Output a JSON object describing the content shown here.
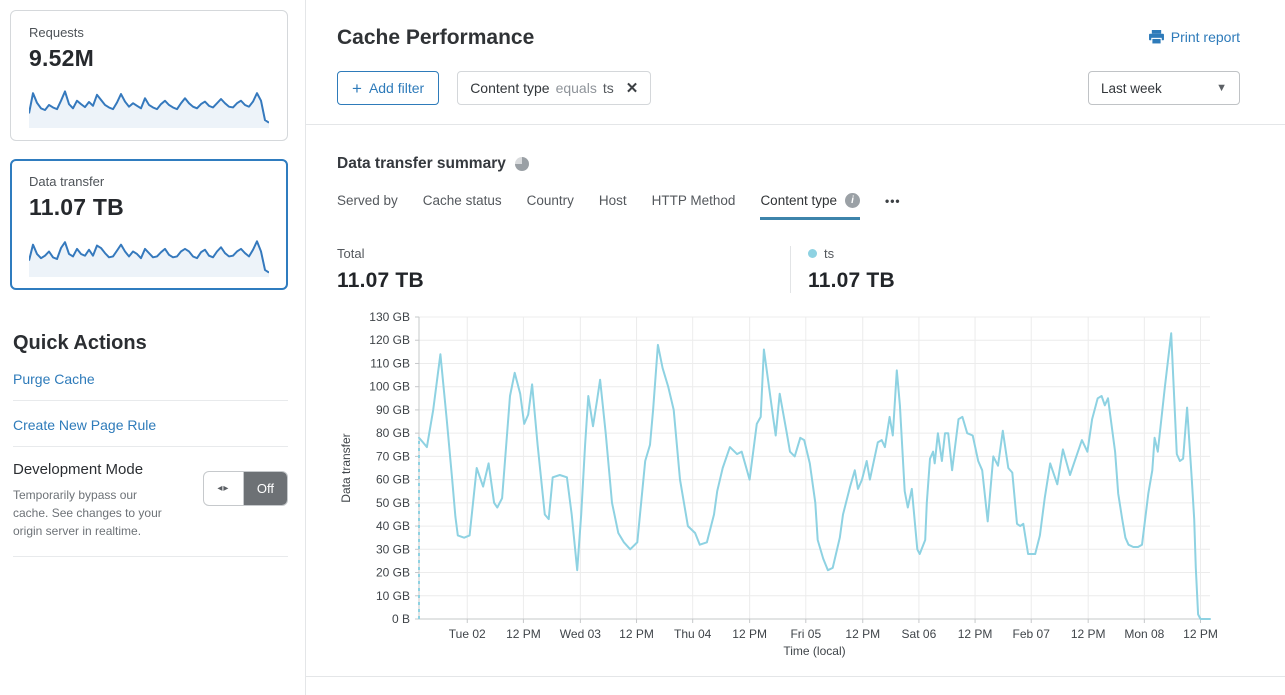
{
  "colors": {
    "accent_blue": "#2e7bba",
    "line_blue": "#8ed2e2",
    "spark_blue": "#3579bd",
    "tab_underline": "#3d84ab"
  },
  "sidebar": {
    "cards": [
      {
        "label": "Requests",
        "value": "9.52M",
        "selected": false,
        "spark": [
          30,
          78,
          55,
          42,
          38,
          50,
          44,
          40,
          60,
          82,
          52,
          42,
          60,
          52,
          45,
          57,
          48,
          74,
          62,
          50,
          44,
          40,
          56,
          76,
          58,
          46,
          54,
          48,
          42,
          66,
          50,
          44,
          40,
          52,
          60,
          50,
          44,
          40,
          54,
          66,
          54,
          46,
          42,
          52,
          58,
          48,
          44,
          54,
          64,
          54,
          46,
          44,
          54,
          60,
          50,
          46,
          58,
          78,
          60,
          14,
          8
        ]
      },
      {
        "label": "Data transfer",
        "value": "11.07 TB",
        "selected": true,
        "spark": [
          34,
          72,
          50,
          40,
          46,
          56,
          42,
          38,
          64,
          78,
          50,
          44,
          62,
          50,
          46,
          60,
          46,
          70,
          64,
          52,
          42,
          44,
          58,
          72,
          56,
          44,
          56,
          50,
          40,
          62,
          52,
          42,
          44,
          54,
          62,
          48,
          42,
          44,
          56,
          62,
          56,
          44,
          40,
          54,
          60,
          46,
          42,
          56,
          66,
          52,
          44,
          46,
          56,
          62,
          52,
          44,
          60,
          80,
          56,
          12,
          6
        ]
      }
    ],
    "quick_actions": {
      "title": "Quick Actions",
      "links": [
        "Purge Cache",
        "Create New Page Rule"
      ]
    },
    "dev_mode": {
      "title": "Development Mode",
      "description": "Temporarily bypass our cache. See changes to your origin server in realtime.",
      "toggle_state": "Off",
      "toggle_arrows": "◂▸"
    }
  },
  "header": {
    "title": "Cache Performance",
    "print_label": "Print report"
  },
  "filters": {
    "add_filter_label": "Add filter",
    "chip": {
      "field": "Content type",
      "operator": "equals",
      "value": "ts",
      "remove": "✕"
    },
    "time_range": "Last week"
  },
  "summary": {
    "title": "Data transfer summary",
    "tabs": [
      "Served by",
      "Cache status",
      "Country",
      "Host",
      "HTTP Method",
      "Content type"
    ],
    "active_tab": "Content type",
    "more_label": "•••",
    "total": {
      "label": "Total",
      "value": "11.07 TB"
    },
    "legend": {
      "label": "ts",
      "value": "11.07 TB",
      "color": "#8ed2e2"
    }
  },
  "chart_data": {
    "type": "line",
    "title": "Data transfer summary",
    "xlabel": "Time (local)",
    "ylabel": "Data transfer",
    "unit": "GB",
    "ylim": [
      0,
      130
    ],
    "ytick_step": 10,
    "ytick_labels": [
      "0 B",
      "10 GB",
      "20 GB",
      "30 GB",
      "40 GB",
      "50 GB",
      "60 GB",
      "70 GB",
      "80 GB",
      "90 GB",
      "100 GB",
      "110 GB",
      "120 GB",
      "130 GB"
    ],
    "grid": true,
    "legend_position": "top-right",
    "start_dashed": true,
    "xticks": [
      {
        "label": "Tue 02",
        "pos": 6.1
      },
      {
        "label": "12 PM",
        "pos": 13.2
      },
      {
        "label": "Wed 03",
        "pos": 20.4
      },
      {
        "label": "12 PM",
        "pos": 27.5
      },
      {
        "label": "Thu 04",
        "pos": 34.6
      },
      {
        "label": "12 PM",
        "pos": 41.8
      },
      {
        "label": "Fri 05",
        "pos": 48.9
      },
      {
        "label": "12 PM",
        "pos": 56.1
      },
      {
        "label": "Sat 06",
        "pos": 63.2
      },
      {
        "label": "12 PM",
        "pos": 70.3
      },
      {
        "label": "Feb 07",
        "pos": 77.4
      },
      {
        "label": "12 PM",
        "pos": 84.6
      },
      {
        "label": "Mon 08",
        "pos": 91.7
      },
      {
        "label": "12 PM",
        "pos": 98.8
      }
    ],
    "series": [
      {
        "name": "ts",
        "color": "#8ed2e2",
        "points": [
          [
            0.0,
            78
          ],
          [
            0.5,
            76
          ],
          [
            1.0,
            74
          ],
          [
            1.8,
            90
          ],
          [
            2.7,
            114
          ],
          [
            3.5,
            86
          ],
          [
            4.2,
            60
          ],
          [
            4.6,
            44
          ],
          [
            4.9,
            36
          ],
          [
            5.7,
            35
          ],
          [
            6.4,
            36
          ],
          [
            7.3,
            65
          ],
          [
            8.1,
            57
          ],
          [
            8.8,
            67
          ],
          [
            9.5,
            50
          ],
          [
            9.9,
            48
          ],
          [
            10.5,
            52
          ],
          [
            11.5,
            96
          ],
          [
            12.1,
            106
          ],
          [
            12.8,
            97
          ],
          [
            13.3,
            84
          ],
          [
            13.8,
            88
          ],
          [
            14.3,
            101
          ],
          [
            15.0,
            75
          ],
          [
            15.9,
            45
          ],
          [
            16.4,
            43
          ],
          [
            16.9,
            61
          ],
          [
            17.8,
            62
          ],
          [
            18.7,
            61
          ],
          [
            19.3,
            45
          ],
          [
            20.0,
            21
          ],
          [
            20.5,
            45
          ],
          [
            21.0,
            75
          ],
          [
            21.4,
            96
          ],
          [
            22.0,
            83
          ],
          [
            22.5,
            94
          ],
          [
            22.9,
            103
          ],
          [
            23.6,
            80
          ],
          [
            24.4,
            50
          ],
          [
            25.2,
            37
          ],
          [
            25.9,
            33
          ],
          [
            26.7,
            30
          ],
          [
            27.6,
            33
          ],
          [
            28.6,
            68
          ],
          [
            29.2,
            75
          ],
          [
            29.6,
            90
          ],
          [
            30.2,
            118
          ],
          [
            30.8,
            108
          ],
          [
            31.5,
            100
          ],
          [
            32.2,
            90
          ],
          [
            33.0,
            60
          ],
          [
            34.0,
            40
          ],
          [
            34.9,
            37
          ],
          [
            35.5,
            32
          ],
          [
            36.4,
            33
          ],
          [
            37.3,
            45
          ],
          [
            37.7,
            55
          ],
          [
            38.4,
            65
          ],
          [
            39.3,
            74
          ],
          [
            40.2,
            71
          ],
          [
            40.8,
            72
          ],
          [
            41.8,
            60
          ],
          [
            42.7,
            84
          ],
          [
            43.2,
            87
          ],
          [
            43.6,
            116
          ],
          [
            44.8,
            86
          ],
          [
            45.1,
            79
          ],
          [
            45.6,
            97
          ],
          [
            46.5,
            80
          ],
          [
            46.9,
            72
          ],
          [
            47.5,
            70
          ],
          [
            48.2,
            78
          ],
          [
            48.7,
            77
          ],
          [
            49.4,
            67
          ],
          [
            50.1,
            50
          ],
          [
            50.4,
            34
          ],
          [
            51.1,
            26
          ],
          [
            51.7,
            21
          ],
          [
            52.3,
            22
          ],
          [
            53.2,
            35
          ],
          [
            53.6,
            45
          ],
          [
            54.5,
            57
          ],
          [
            55.1,
            64
          ],
          [
            55.5,
            56
          ],
          [
            56.0,
            60
          ],
          [
            56.6,
            68
          ],
          [
            57.0,
            60
          ],
          [
            58.0,
            76
          ],
          [
            58.5,
            77
          ],
          [
            58.9,
            74
          ],
          [
            59.5,
            87
          ],
          [
            59.9,
            79
          ],
          [
            60.4,
            107
          ],
          [
            60.8,
            92
          ],
          [
            61.4,
            55
          ],
          [
            61.8,
            48
          ],
          [
            62.3,
            56
          ],
          [
            63.0,
            30
          ],
          [
            63.3,
            28
          ],
          [
            64.0,
            34
          ],
          [
            64.2,
            50
          ],
          [
            64.6,
            69
          ],
          [
            65.0,
            72
          ],
          [
            65.2,
            67
          ],
          [
            65.6,
            80
          ],
          [
            66.1,
            68
          ],
          [
            66.5,
            80
          ],
          [
            66.9,
            80
          ],
          [
            67.4,
            64
          ],
          [
            68.2,
            86
          ],
          [
            68.7,
            87
          ],
          [
            69.3,
            80
          ],
          [
            70.0,
            79
          ],
          [
            70.7,
            68
          ],
          [
            71.2,
            64
          ],
          [
            71.9,
            42
          ],
          [
            72.6,
            70
          ],
          [
            73.2,
            66
          ],
          [
            73.8,
            81
          ],
          [
            74.5,
            65
          ],
          [
            75.0,
            63
          ],
          [
            75.6,
            41
          ],
          [
            76.0,
            40
          ],
          [
            76.4,
            41
          ],
          [
            77.0,
            28
          ],
          [
            77.9,
            28
          ],
          [
            78.5,
            36
          ],
          [
            79.1,
            52
          ],
          [
            79.8,
            67
          ],
          [
            80.7,
            58
          ],
          [
            81.4,
            73
          ],
          [
            82.3,
            62
          ],
          [
            83.1,
            70
          ],
          [
            83.8,
            77
          ],
          [
            84.5,
            72
          ],
          [
            85.1,
            86
          ],
          [
            85.8,
            95
          ],
          [
            86.3,
            96
          ],
          [
            86.7,
            92
          ],
          [
            87.1,
            95
          ],
          [
            88.0,
            72
          ],
          [
            88.4,
            54
          ],
          [
            88.9,
            43
          ],
          [
            89.3,
            35
          ],
          [
            89.7,
            32
          ],
          [
            90.3,
            31
          ],
          [
            90.9,
            31
          ],
          [
            91.4,
            32
          ],
          [
            92.2,
            54
          ],
          [
            92.7,
            64
          ],
          [
            93.0,
            78
          ],
          [
            93.4,
            72
          ],
          [
            94.3,
            100
          ],
          [
            95.1,
            123
          ],
          [
            95.8,
            71
          ],
          [
            96.2,
            68
          ],
          [
            96.6,
            69
          ],
          [
            97.1,
            91
          ],
          [
            97.7,
            60
          ],
          [
            98.0,
            43
          ],
          [
            98.2,
            22
          ],
          [
            98.5,
            2
          ],
          [
            98.8,
            0
          ],
          [
            100.0,
            0
          ]
        ]
      }
    ]
  }
}
